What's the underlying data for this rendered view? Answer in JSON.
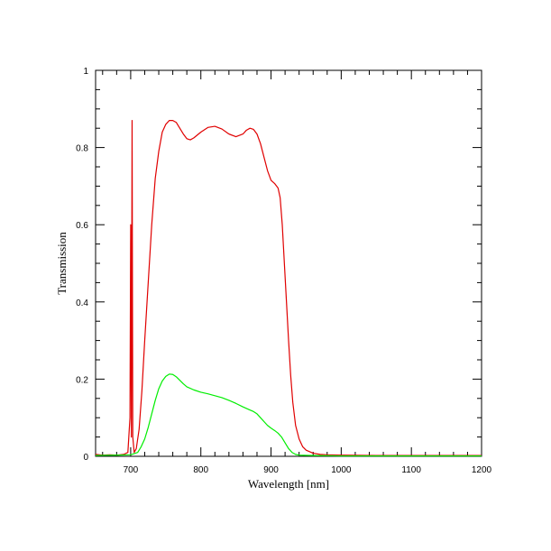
{
  "chart_data": {
    "type": "line",
    "xlabel": "Wavelength [nm]",
    "ylabel": "Transmission",
    "xlim": [
      650,
      1200
    ],
    "ylim": [
      0,
      1
    ],
    "grid": false,
    "x_major_ticks": [
      700,
      800,
      900,
      1000,
      1100,
      1200
    ],
    "x_tick_labels": [
      "700",
      "800",
      "900",
      "1000",
      "1100",
      "1200"
    ],
    "y_major_ticks": [
      0,
      0.2,
      0.4,
      0.6,
      0.8,
      1
    ],
    "y_tick_labels": [
      "0",
      "0.2",
      "0.4",
      "0.6",
      "0.8",
      "1"
    ],
    "series": [
      {
        "color": "#e00000",
        "points": [
          [
            650,
            0.005
          ],
          [
            660,
            0.003
          ],
          [
            670,
            0.004
          ],
          [
            680,
            0.003
          ],
          [
            690,
            0.005
          ],
          [
            696,
            0.01
          ],
          [
            699,
            0.1
          ],
          [
            700,
            0.6
          ],
          [
            701,
            0.05
          ],
          [
            702,
            0.87
          ],
          [
            703,
            0.05
          ],
          [
            705,
            0.01
          ],
          [
            708,
            0.02
          ],
          [
            712,
            0.07
          ],
          [
            716,
            0.17
          ],
          [
            720,
            0.3
          ],
          [
            725,
            0.45
          ],
          [
            730,
            0.6
          ],
          [
            735,
            0.72
          ],
          [
            740,
            0.79
          ],
          [
            745,
            0.84
          ],
          [
            750,
            0.86
          ],
          [
            755,
            0.87
          ],
          [
            760,
            0.87
          ],
          [
            765,
            0.865
          ],
          [
            770,
            0.85
          ],
          [
            775,
            0.835
          ],
          [
            780,
            0.823
          ],
          [
            785,
            0.82
          ],
          [
            790,
            0.825
          ],
          [
            800,
            0.84
          ],
          [
            810,
            0.852
          ],
          [
            820,
            0.855
          ],
          [
            830,
            0.848
          ],
          [
            840,
            0.835
          ],
          [
            850,
            0.828
          ],
          [
            860,
            0.835
          ],
          [
            865,
            0.845
          ],
          [
            870,
            0.85
          ],
          [
            875,
            0.847
          ],
          [
            880,
            0.835
          ],
          [
            885,
            0.81
          ],
          [
            890,
            0.775
          ],
          [
            895,
            0.74
          ],
          [
            900,
            0.715
          ],
          [
            905,
            0.707
          ],
          [
            910,
            0.695
          ],
          [
            913,
            0.67
          ],
          [
            916,
            0.6
          ],
          [
            919,
            0.5
          ],
          [
            922,
            0.4
          ],
          [
            925,
            0.3
          ],
          [
            928,
            0.21
          ],
          [
            931,
            0.14
          ],
          [
            935,
            0.08
          ],
          [
            940,
            0.045
          ],
          [
            945,
            0.025
          ],
          [
            950,
            0.016
          ],
          [
            960,
            0.008
          ],
          [
            970,
            0.005
          ],
          [
            980,
            0.004
          ],
          [
            1000,
            0.003
          ],
          [
            1050,
            0.002
          ],
          [
            1100,
            0.002
          ],
          [
            1150,
            0.002
          ],
          [
            1200,
            0.002
          ]
        ]
      },
      {
        "color": "#00ee00",
        "points": [
          [
            650,
            0.002
          ],
          [
            680,
            0.003
          ],
          [
            700,
            0.004
          ],
          [
            710,
            0.01
          ],
          [
            715,
            0.025
          ],
          [
            720,
            0.045
          ],
          [
            725,
            0.075
          ],
          [
            730,
            0.11
          ],
          [
            735,
            0.145
          ],
          [
            740,
            0.175
          ],
          [
            745,
            0.195
          ],
          [
            750,
            0.207
          ],
          [
            755,
            0.213
          ],
          [
            760,
            0.212
          ],
          [
            765,
            0.206
          ],
          [
            770,
            0.197
          ],
          [
            775,
            0.188
          ],
          [
            780,
            0.18
          ],
          [
            790,
            0.172
          ],
          [
            800,
            0.166
          ],
          [
            810,
            0.162
          ],
          [
            820,
            0.157
          ],
          [
            830,
            0.152
          ],
          [
            840,
            0.145
          ],
          [
            850,
            0.137
          ],
          [
            860,
            0.128
          ],
          [
            870,
            0.12
          ],
          [
            875,
            0.116
          ],
          [
            880,
            0.11
          ],
          [
            885,
            0.1
          ],
          [
            890,
            0.09
          ],
          [
            895,
            0.08
          ],
          [
            900,
            0.073
          ],
          [
            905,
            0.067
          ],
          [
            910,
            0.06
          ],
          [
            915,
            0.05
          ],
          [
            920,
            0.035
          ],
          [
            925,
            0.02
          ],
          [
            930,
            0.01
          ],
          [
            935,
            0.005
          ],
          [
            940,
            0.003
          ],
          [
            960,
            0.002
          ],
          [
            1000,
            0.001
          ],
          [
            1200,
            0.001
          ]
        ]
      }
    ]
  }
}
